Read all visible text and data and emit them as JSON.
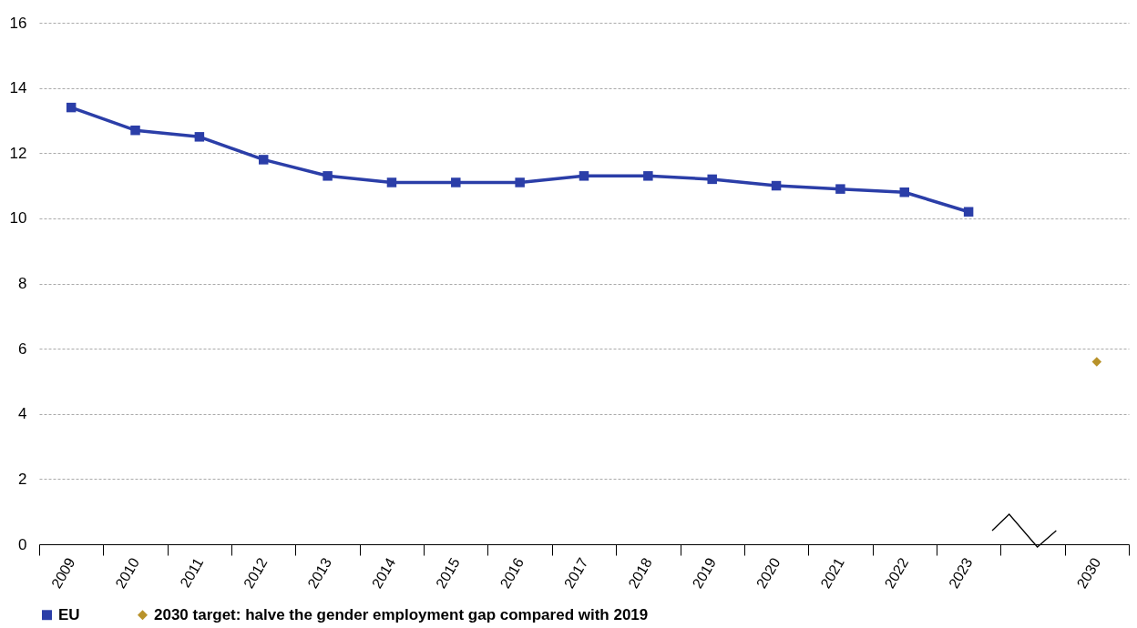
{
  "chart_data": {
    "type": "line",
    "categories": [
      "2009",
      "2010",
      "2011",
      "2012",
      "2013",
      "2014",
      "2015",
      "2016",
      "2017",
      "2018",
      "2019",
      "2020",
      "2021",
      "2022",
      "2023",
      null,
      "2030"
    ],
    "series": [
      {
        "name": "EU",
        "color": "#2b3ea8",
        "marker": "square",
        "values": [
          13.4,
          12.7,
          12.5,
          11.8,
          11.3,
          11.1,
          11.1,
          11.1,
          11.3,
          11.3,
          11.2,
          11.0,
          10.9,
          10.8,
          10.2,
          null,
          null
        ]
      },
      {
        "name": "2030 target: halve the gender employment gap compared with 2019",
        "color": "#b8922a",
        "type": "scatter",
        "marker": "diamond",
        "values": [
          null,
          null,
          null,
          null,
          null,
          null,
          null,
          null,
          null,
          null,
          null,
          null,
          null,
          null,
          null,
          null,
          5.6
        ]
      }
    ],
    "ylim": [
      0,
      16
    ],
    "yticks": [
      0,
      2,
      4,
      6,
      8,
      10,
      12,
      14,
      16
    ],
    "grid": "y",
    "legend": "bottom"
  }
}
